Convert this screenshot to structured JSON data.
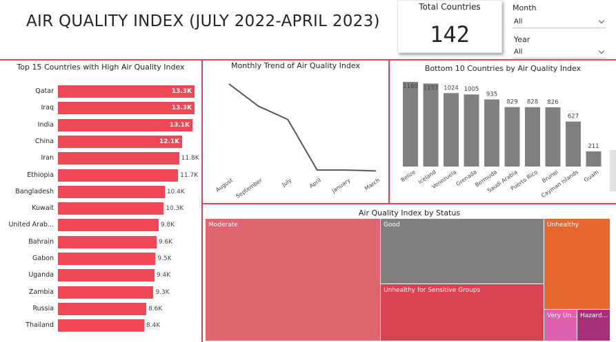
{
  "header": {
    "title": "AIR QUALITY INDEX (JULY 2022-APRIL 2023)"
  },
  "kpi": {
    "label": "Total Countries",
    "value": "142"
  },
  "slicers": {
    "month": {
      "label": "Month",
      "value": "All"
    },
    "year": {
      "label": "Year",
      "value": "All"
    }
  },
  "top15": {
    "title": "Top 15 Countries with High Air Quality Index",
    "color": "#ef4755",
    "items": [
      {
        "country": "Qatar",
        "value": 13300,
        "label": "13.3K"
      },
      {
        "country": "Iraq",
        "value": 13300,
        "label": "13.3K"
      },
      {
        "country": "India",
        "value": 13100,
        "label": "13.1K"
      },
      {
        "country": "China",
        "value": 12100,
        "label": "12.1K"
      },
      {
        "country": "Iran",
        "value": 11800,
        "label": "11.8K"
      },
      {
        "country": "Ethiopia",
        "value": 11700,
        "label": "11.7K"
      },
      {
        "country": "Bangladesh",
        "value": 10400,
        "label": "10.4K"
      },
      {
        "country": "Kuwait",
        "value": 10300,
        "label": "10.3K"
      },
      {
        "country": "United Arab...",
        "value": 9800,
        "label": "9.8K"
      },
      {
        "country": "Bahrain",
        "value": 9600,
        "label": "9.6K"
      },
      {
        "country": "Gabon",
        "value": 9500,
        "label": "9.5K"
      },
      {
        "country": "Uganda",
        "value": 9400,
        "label": "9.4K"
      },
      {
        "country": "Zambia",
        "value": 9300,
        "label": "9.3K"
      },
      {
        "country": "Russia",
        "value": 8600,
        "label": "8.6K"
      },
      {
        "country": "Thailand",
        "value": 8400,
        "label": "8.4K"
      }
    ]
  },
  "trend": {
    "title": "Monthly Trend of Air Quality Index",
    "chart_data": {
      "type": "line",
      "categories": [
        "August",
        "September",
        "July",
        "April",
        "January",
        "March"
      ],
      "values": [
        100,
        75,
        60,
        3,
        3,
        2
      ],
      "ylim": [
        0,
        100
      ],
      "color": "#555555"
    }
  },
  "bottom10": {
    "title": "Bottom 10 Countries by Air Quality Index",
    "color": "#808080",
    "chart_data": {
      "type": "bar",
      "categories": [
        "Belize",
        "Iceland",
        "Venezuela",
        "Grenada",
        "Bermuda",
        "Saudi Arabia",
        "Puerto Rico",
        "Brunei",
        "Cayman Islands",
        "Guam"
      ],
      "values": [
        1180,
        1157,
        1024,
        1005,
        935,
        829,
        828,
        826,
        627,
        211
      ],
      "labels": [
        "1180",
        "1157",
        "1024",
        "1005",
        "935",
        "829",
        "828",
        "826",
        "627",
        "211"
      ]
    }
  },
  "status": {
    "title": "Air Quality Index by Status",
    "items": [
      {
        "name": "Moderate",
        "color": "#e0656f"
      },
      {
        "name": "Good",
        "color": "#808080"
      },
      {
        "name": "Unhealthy for Sensitive Groups",
        "color": "#d94250"
      },
      {
        "name": "Unhealthy",
        "color": "#e8662f"
      },
      {
        "name": "Very Un...",
        "color": "#e060b0"
      },
      {
        "name": "Hazard...",
        "color": "#a8307a"
      }
    ]
  }
}
